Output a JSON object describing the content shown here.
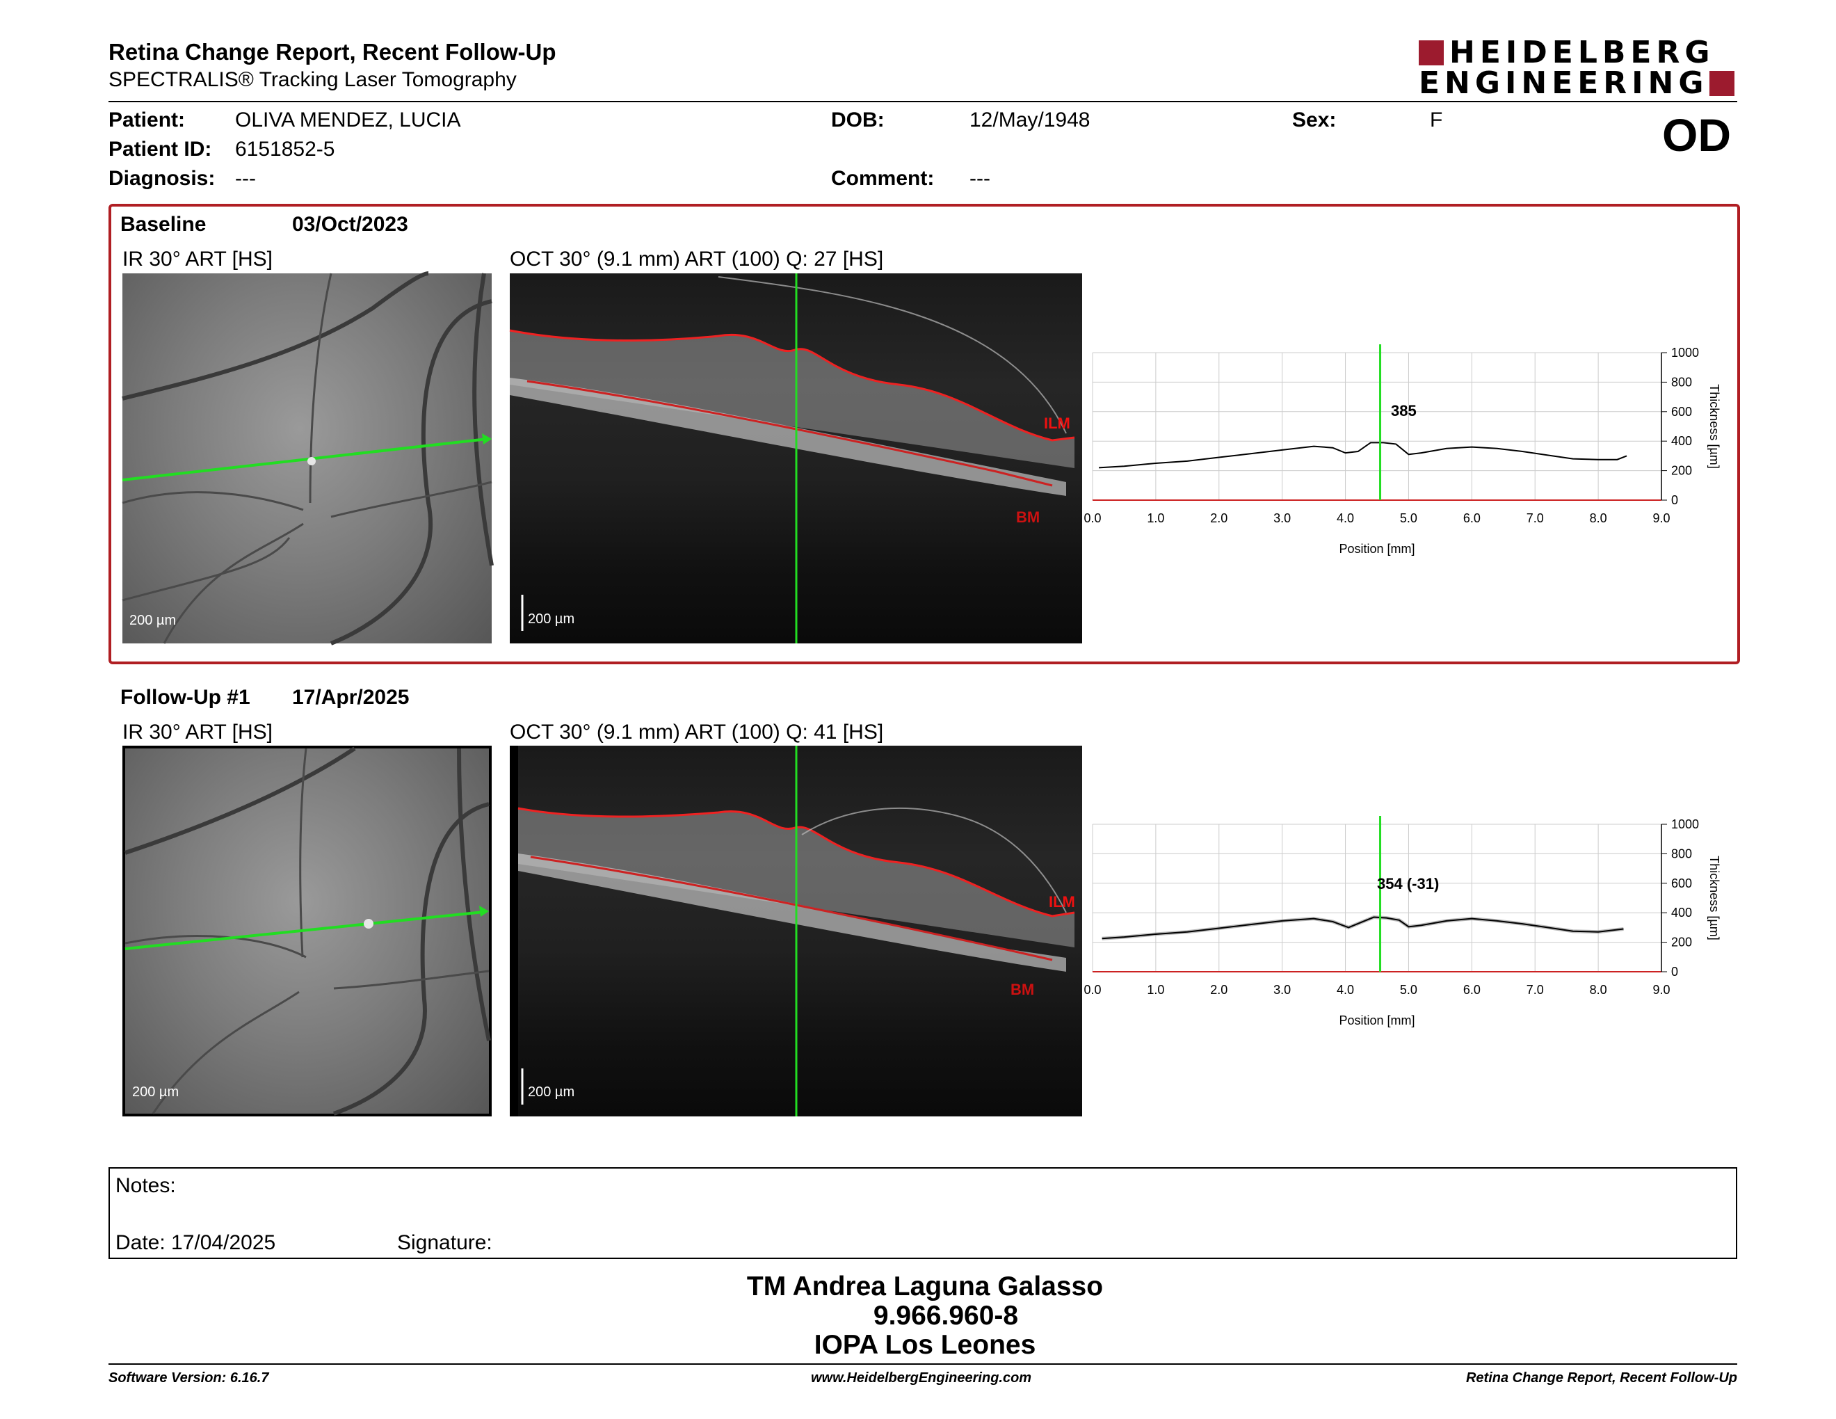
{
  "header": {
    "title": "Retina Change Report, Recent Follow-Up",
    "subtitle": "SPECTRALIS® Tracking Laser Tomography",
    "logo": {
      "line1": "HEIDELBERG",
      "line2": "ENGINEERING",
      "brand_color": "#9c1b2e"
    }
  },
  "patient": {
    "patient_label": "Patient:",
    "patient_value": "OLIVA MENDEZ, LUCIA",
    "id_label": "Patient ID:",
    "id_value": "6151852-5",
    "diagnosis_label": "Diagnosis:",
    "diagnosis_value": "---",
    "dob_label": "DOB:",
    "dob_value": "12/May/1948",
    "comment_label": "Comment:",
    "comment_value": "---",
    "sex_label": "Sex:",
    "sex_value": "F",
    "eye": "OD"
  },
  "baseline": {
    "label": "Baseline",
    "date": "03/Oct/2023",
    "ir_label": "IR 30° ART [HS]",
    "oct_label": "OCT 30° (9.1 mm) ART (100) Q: 27 [HS]",
    "ilm": "ILM",
    "bm": "BM",
    "scale": "200 µm",
    "value_label": "385"
  },
  "followup": {
    "label": "Follow-Up #1",
    "date": "17/Apr/2025",
    "ir_label": "IR 30° ART [HS]",
    "oct_label": "OCT 30° (9.1 mm) ART (100) Q: 41 [HS]",
    "ilm": "ILM",
    "bm": "BM",
    "scale": "200 µm",
    "value_label": "354 (-31)"
  },
  "chart_data": [
    {
      "type": "line",
      "xlabel": "Position [mm]",
      "ylabel": "Thickness [µm]",
      "xlim": [
        0,
        9
      ],
      "ylim": [
        0,
        1000
      ],
      "xticks": [
        "0.0",
        "1.0",
        "2.0",
        "3.0",
        "4.0",
        "5.0",
        "6.0",
        "7.0",
        "8.0",
        "9.0"
      ],
      "yticks": [
        "0",
        "200",
        "400",
        "600",
        "800",
        "1000"
      ],
      "cursor_x": 4.55,
      "x": [
        0.1,
        0.5,
        1.0,
        1.5,
        2.0,
        2.5,
        3.0,
        3.5,
        3.8,
        4.0,
        4.2,
        4.4,
        4.6,
        4.8,
        5.0,
        5.2,
        5.6,
        6.0,
        6.4,
        6.8,
        7.2,
        7.6,
        8.0,
        8.3,
        8.45
      ],
      "y": [
        220,
        230,
        250,
        265,
        290,
        315,
        340,
        365,
        355,
        320,
        330,
        390,
        390,
        380,
        310,
        320,
        350,
        360,
        350,
        330,
        305,
        280,
        275,
        275,
        300
      ]
    },
    {
      "type": "line",
      "xlabel": "Position [mm]",
      "ylabel": "Thickness [µm]",
      "xlim": [
        0,
        9
      ],
      "ylim": [
        0,
        1000
      ],
      "xticks": [
        "0.0",
        "1.0",
        "2.0",
        "3.0",
        "4.0",
        "5.0",
        "6.0",
        "7.0",
        "8.0",
        "9.0"
      ],
      "yticks": [
        "0",
        "200",
        "400",
        "600",
        "800",
        "1000"
      ],
      "cursor_x": 4.55,
      "x": [
        0.15,
        0.5,
        1.0,
        1.5,
        2.0,
        2.5,
        3.0,
        3.5,
        3.8,
        4.05,
        4.25,
        4.45,
        4.65,
        4.85,
        5.0,
        5.2,
        5.6,
        6.0,
        6.4,
        6.8,
        7.2,
        7.6,
        8.0,
        8.4
      ],
      "y": [
        225,
        235,
        255,
        270,
        295,
        320,
        345,
        360,
        340,
        300,
        335,
        370,
        365,
        350,
        305,
        315,
        345,
        360,
        345,
        325,
        300,
        275,
        270,
        290
      ]
    }
  ],
  "notes": {
    "notes_label": "Notes:",
    "date_label": "Date: 17/04/2025",
    "signature_label": "Signature:"
  },
  "signer": {
    "name": "TM Andrea Laguna Galasso",
    "id": "9.966.960-8",
    "institution": "IOPA Los Leones"
  },
  "footer": {
    "left": "Software Version: 6.16.7",
    "center": "www.HeidelbergEngineering.com",
    "right": "Retina Change Report, Recent Follow-Up"
  }
}
